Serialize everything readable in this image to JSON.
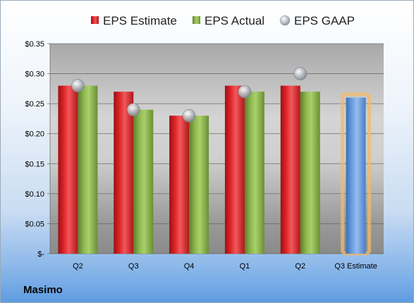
{
  "company": "Masimo",
  "chart_data": {
    "type": "bar",
    "categories": [
      "Q2",
      "Q3",
      "Q4",
      "Q1",
      "Q2",
      "Q3 Estimate"
    ],
    "series": [
      {
        "name": "EPS Estimate",
        "type": "bar",
        "color": "#e0262a",
        "values": [
          0.28,
          0.27,
          0.23,
          0.28,
          0.28,
          null
        ]
      },
      {
        "name": "EPS Actual",
        "type": "bar",
        "color": "#8cb84e",
        "values": [
          0.28,
          0.24,
          0.23,
          0.27,
          0.27,
          null
        ]
      },
      {
        "name": "EPS GAAP",
        "type": "marker",
        "color": "#b8bcc4",
        "values": [
          0.28,
          0.24,
          0.23,
          0.27,
          0.3,
          null
        ]
      },
      {
        "name": "",
        "type": "bar",
        "color": "#6a9ede",
        "values": [
          null,
          null,
          null,
          null,
          null,
          0.26
        ],
        "highlight": "#f4b86a"
      }
    ],
    "ylim": [
      0,
      0.35
    ],
    "yticks": [
      0,
      0.05,
      0.1,
      0.15,
      0.2,
      0.25,
      0.3,
      0.35
    ],
    "ytick_labels": [
      "$-",
      "$0.05",
      "$0.10",
      "$0.15",
      "$0.20",
      "$0.25",
      "$0.30",
      "$0.35"
    ],
    "grid": true,
    "legend": "top"
  }
}
